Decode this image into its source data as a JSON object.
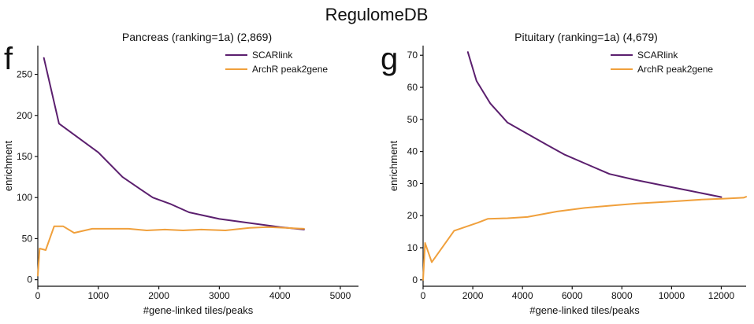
{
  "figure_title": "RegulomeDB",
  "colors": {
    "scarlink": "#5b1f6e",
    "archr": "#f0a03c",
    "axis": "#111111"
  },
  "chart_data": [
    {
      "panel_label": "f",
      "type": "line",
      "title": "Pancreas (ranking=1a) (2,869)",
      "xlabel": "#gene-linked tiles/peaks",
      "ylabel": "enrichment",
      "xlim": [
        0,
        5300
      ],
      "ylim": [
        -8,
        285
      ],
      "xticks": [
        0,
        1000,
        2000,
        3000,
        4000,
        5000
      ],
      "yticks": [
        0,
        50,
        100,
        150,
        200,
        250
      ],
      "legend_position": "top-right",
      "series": [
        {
          "name": "SCARlink",
          "color_key": "scarlink",
          "x": [
            100,
            350,
            1000,
            1400,
            1700,
            1900,
            2200,
            2500,
            3000,
            3600,
            4000,
            4400
          ],
          "y": [
            270,
            190,
            155,
            125,
            110,
            100,
            92,
            82,
            74,
            68,
            64,
            61
          ]
        },
        {
          "name": "ArchR peak2gene",
          "color_key": "archr",
          "x": [
            0,
            30,
            130,
            270,
            420,
            600,
            900,
            1200,
            1500,
            1800,
            2100,
            2400,
            2700,
            3100,
            3500,
            3800,
            4100,
            4400
          ],
          "y": [
            5,
            38,
            36,
            65,
            65,
            57,
            62,
            62,
            62,
            60,
            61,
            60,
            61,
            60,
            63,
            64,
            63,
            62
          ]
        }
      ]
    },
    {
      "panel_label": "g",
      "type": "line",
      "title": "Pituitary (ranking=1a) (4,679)",
      "xlabel": "#gene-linked tiles/peaks",
      "ylabel": "enrichment",
      "xlim": [
        0,
        13000
      ],
      "ylim": [
        -2,
        73
      ],
      "xticks": [
        0,
        2000,
        4000,
        6000,
        8000,
        10000,
        12000
      ],
      "yticks": [
        0,
        10,
        20,
        30,
        40,
        50,
        60,
        70
      ],
      "legend_position": "top-right",
      "series": [
        {
          "name": "SCARlink",
          "color_key": "scarlink",
          "x": [
            1800,
            2150,
            2700,
            3400,
            4200,
            5000,
            5700,
            6600,
            7500,
            8500,
            9600,
            10700,
            12000
          ],
          "y": [
            71,
            62,
            55,
            49,
            45.5,
            42,
            39,
            36,
            33,
            31.2,
            29.5,
            27.8,
            25.8
          ]
        },
        {
          "name": "ArchR peak2gene",
          "color_key": "archr",
          "x": [
            0,
            80,
            350,
            1250,
            2200,
            2600,
            3400,
            4200,
            5400,
            6500,
            7500,
            8600,
            10000,
            11200,
            12100,
            12900,
            13000
          ],
          "y": [
            0,
            11.5,
            5.5,
            15.3,
            17.8,
            19,
            19.2,
            19.6,
            21.3,
            22.4,
            23.1,
            23.8,
            24.4,
            25,
            25.3,
            25.6,
            25.9
          ]
        }
      ]
    }
  ]
}
